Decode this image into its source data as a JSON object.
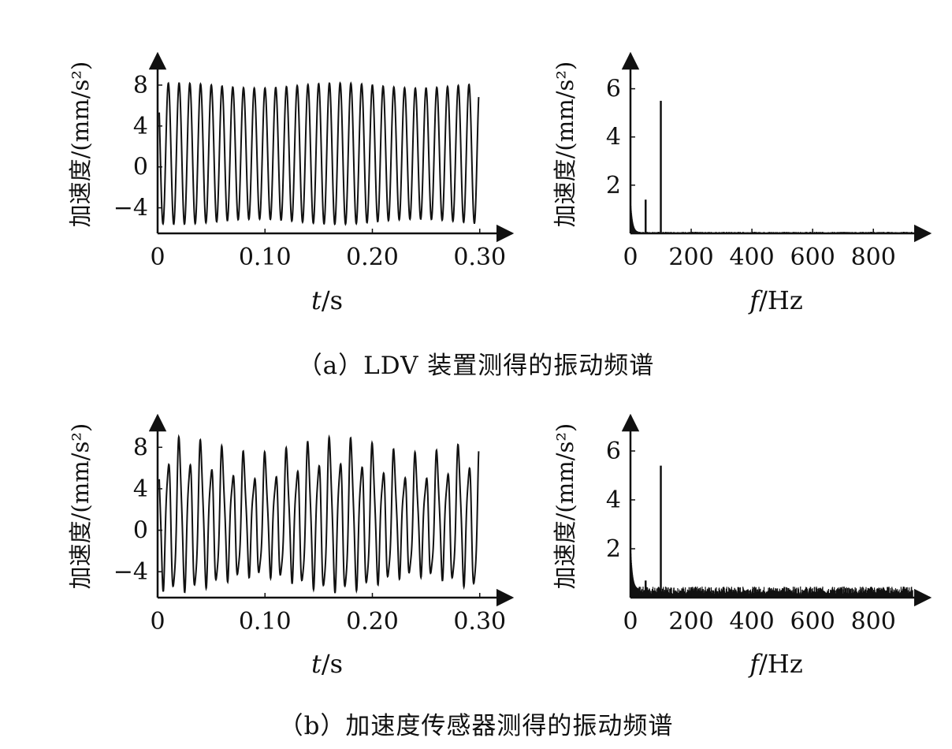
{
  "figure": {
    "caption_a": "（a）LDV 装置测得的振动频谱",
    "caption_b": "（b）加速度传感器测得的振动频谱"
  },
  "chart_data": [
    {
      "id": "a-time",
      "type": "line",
      "xlabel_var": "t",
      "xlabel_unit": "/s",
      "ylabel": "加速度/(mm/s²)",
      "xlim": [
        0,
        0.32
      ],
      "ylim": [
        -6.5,
        10
      ],
      "x_ticks": [
        0,
        0.1,
        0.2,
        0.3
      ],
      "x_tick_labels": [
        "0",
        "0.10",
        "0.20",
        "0.30"
      ],
      "y_ticks": [
        -4,
        0,
        4,
        8
      ],
      "y_tick_labels": [
        "−4",
        "0",
        "4",
        "8"
      ],
      "series": [
        {
          "signal": {
            "duration": 0.299,
            "frequency_hz": 100,
            "offset": 1.3,
            "amplitude_range": [
              6.4,
              6.9
            ],
            "components": []
          }
        }
      ]
    },
    {
      "id": "a-spectrum",
      "type": "line",
      "xlabel_var": "f",
      "xlabel_unit": "/Hz",
      "ylabel": "加速度/(mm/s²)",
      "xlim": [
        0,
        950
      ],
      "ylim": [
        0,
        7
      ],
      "x_ticks": [
        0,
        200,
        400,
        600,
        800
      ],
      "x_tick_labels": [
        "0",
        "200",
        "400",
        "600",
        "800"
      ],
      "y_ticks": [
        2,
        4,
        6
      ],
      "y_tick_labels": [
        "2",
        "4",
        "6"
      ],
      "series": [
        {
          "peaks": [
            {
              "f": 0,
              "a": 1.2
            },
            {
              "f": 50,
              "a": 1.4
            },
            {
              "f": 100,
              "a": 5.5
            }
          ],
          "noise_floor": 0.05
        }
      ]
    },
    {
      "id": "b-time",
      "type": "line",
      "xlabel_var": "t",
      "xlabel_unit": "/s",
      "ylabel": "加速度/(mm/s²)",
      "xlim": [
        0,
        0.32
      ],
      "ylim": [
        -6.5,
        10
      ],
      "x_ticks": [
        0,
        0.1,
        0.2,
        0.3
      ],
      "x_tick_labels": [
        "0",
        "0.10",
        "0.20",
        "0.30"
      ],
      "y_ticks": [
        -4,
        0,
        4,
        8
      ],
      "y_tick_labels": [
        "−4",
        "0",
        "4",
        "8"
      ],
      "series": [
        {
          "signal": {
            "duration": 0.299,
            "frequency_hz": 100,
            "offset": 1.0,
            "amplitude_range": [
              5.0,
              6.5
            ],
            "components": [
              {
                "frequency_hz": 50,
                "amplitude": 1.0
              },
              {
                "frequency_hz": 250,
                "amplitude": 0.8
              }
            ]
          }
        }
      ]
    },
    {
      "id": "b-spectrum",
      "type": "line",
      "xlabel_var": "f",
      "xlabel_unit": "/Hz",
      "ylabel": "加速度/(mm/s²)",
      "xlim": [
        0,
        950
      ],
      "ylim": [
        0,
        7
      ],
      "x_ticks": [
        0,
        200,
        400,
        600,
        800
      ],
      "x_tick_labels": [
        "0",
        "200",
        "400",
        "600",
        "800"
      ],
      "y_ticks": [
        2,
        4,
        6
      ],
      "y_tick_labels": [
        "2",
        "4",
        "6"
      ],
      "series": [
        {
          "peaks": [
            {
              "f": 0,
              "a": 1.6
            },
            {
              "f": 50,
              "a": 0.7
            },
            {
              "f": 100,
              "a": 5.4
            }
          ],
          "noise_floor": 0.35
        }
      ]
    }
  ]
}
